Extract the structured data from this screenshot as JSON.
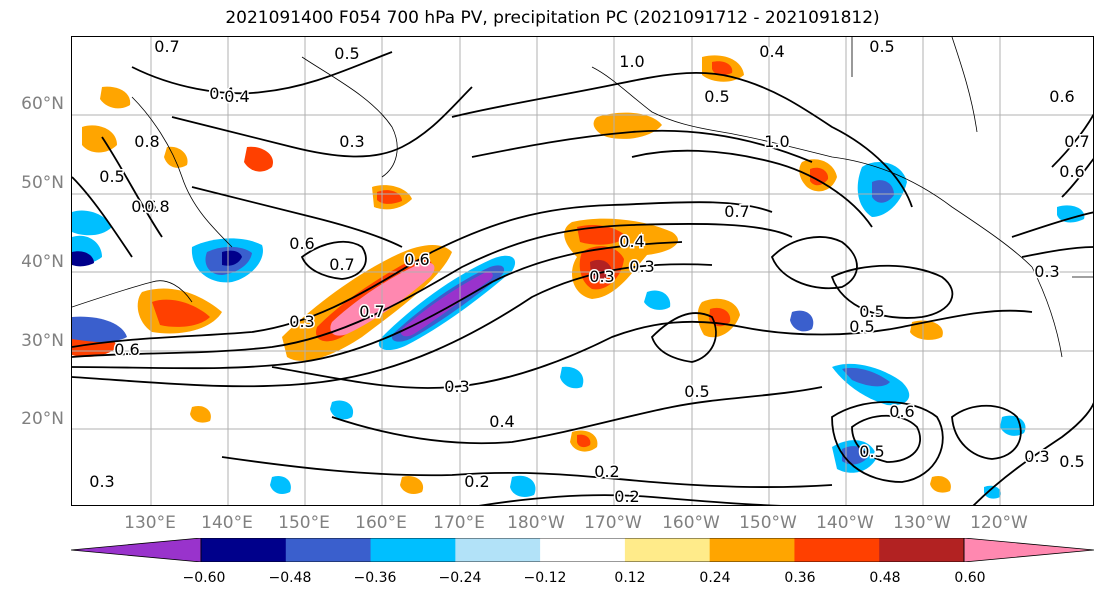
{
  "title": "2021091400 F054 700 hPa PV, precipitation PC (2021091712 - 2021091812)",
  "lat_labels": [
    {
      "text": "60°N",
      "lat": 60
    },
    {
      "text": "50°N",
      "lat": 50
    },
    {
      "text": "40°N",
      "lat": 40
    },
    {
      "text": "30°N",
      "lat": 30
    },
    {
      "text": "20°N",
      "lat": 20
    }
  ],
  "lon_labels": [
    "130°E",
    "140°E",
    "150°E",
    "160°E",
    "170°E",
    "180°W",
    "170°W",
    "160°W",
    "150°W",
    "140°W",
    "130°W",
    "120°W"
  ],
  "colorbar": {
    "colors": [
      "#9933cc",
      "#00008b",
      "#3a5fcd",
      "#00bfff",
      "#b2e2f8",
      "#ffffff",
      "#ffeb8a",
      "#ffa500",
      "#ff4000",
      "#b22222",
      "#ff88b0"
    ],
    "tick_labels": [
      "−0.60",
      "−0.48",
      "−0.36",
      "−0.24",
      "−0.12",
      "0.12",
      "0.24",
      "0.36",
      "0.48",
      "0.60"
    ]
  },
  "contour_labels": [
    "0.7",
    "0.5",
    "0.4",
    "0.4",
    "1.0",
    "0.5",
    "0.6",
    "0.7",
    "1.0",
    "0.8",
    "0.5",
    "0.6",
    "0.6",
    "0.7",
    "0.6",
    "0.4",
    "0.3",
    "0.7",
    "0.7",
    "0.3",
    "0.6",
    "0.8",
    "0.5",
    "0.5",
    "0.4",
    "0.6",
    "0.3",
    "0.4",
    "0.3",
    "0.5",
    "0.2",
    "0.2",
    "0.5",
    "0.6",
    "0.3",
    "0.5",
    "0.3",
    "0.2",
    "0.2",
    "0.3",
    "0.5",
    "0.3",
    "0.3",
    "0.4"
  ],
  "features": {
    "shading": "precipitation percentile change (colored fill)",
    "contours": "700 hPa potential vorticity (black lines)"
  }
}
